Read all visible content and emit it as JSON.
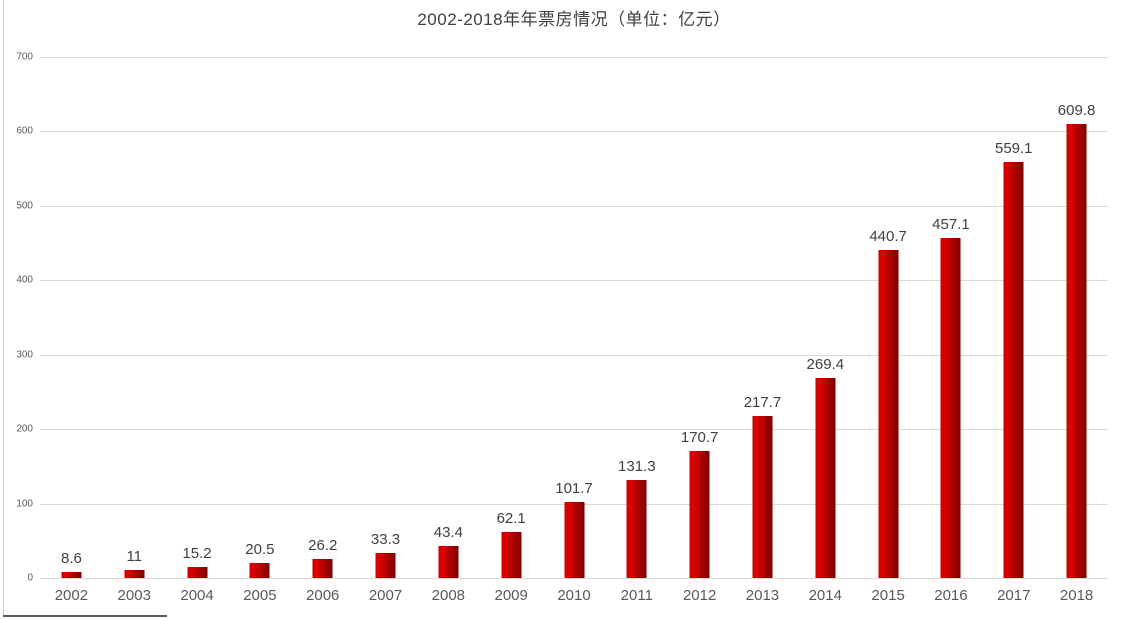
{
  "page": {
    "background": "#ffffff"
  },
  "chart_data": {
    "type": "bar",
    "title": "2002-2018年年票房情况（单位：亿元）",
    "categories": [
      "2002",
      "2003",
      "2004",
      "2005",
      "2006",
      "2007",
      "2008",
      "2009",
      "2010",
      "2011",
      "2012",
      "2013",
      "2014",
      "2015",
      "2016",
      "2017",
      "2018"
    ],
    "values": [
      8.6,
      11,
      15.2,
      20.5,
      26.2,
      33.3,
      43.4,
      62.1,
      101.7,
      131.3,
      170.7,
      217.7,
      269.4,
      440.7,
      457.1,
      559.1,
      609.8
    ],
    "xlabel": "",
    "ylabel": "",
    "ylim": [
      0,
      700
    ],
    "yticks": [
      0,
      100,
      200,
      300,
      400,
      500,
      600,
      700
    ],
    "grid": true,
    "legend_position": "none",
    "data_labels_shown": true,
    "colors": {
      "bar_gradient": [
        "#c90000",
        "#e20000",
        "#b00000",
        "#7d0000"
      ],
      "gridline": "#d9d9d9",
      "title_text": "#404040",
      "data_label_text": "#404040",
      "axis_tick_text": "#595959"
    }
  }
}
